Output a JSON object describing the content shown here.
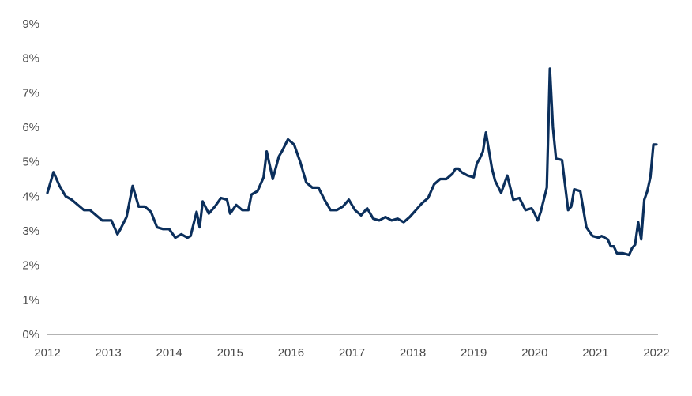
{
  "chart_data": {
    "type": "line",
    "title": "",
    "xlabel": "",
    "ylabel": "",
    "x_ticks": [
      "2012",
      "2013",
      "2014",
      "2015",
      "2016",
      "2017",
      "2018",
      "2019",
      "2020",
      "2021",
      "2022"
    ],
    "y_ticks": [
      "0%",
      "1%",
      "2%",
      "3%",
      "4%",
      "5%",
      "6%",
      "7%",
      "8%",
      "9%"
    ],
    "xlim": [
      2012,
      2022.1
    ],
    "ylim": [
      0,
      9
    ],
    "grid": false,
    "colors": {
      "line": "#0b2f5c",
      "axis": "#9a9a9a",
      "text": "#4a4a4a"
    },
    "series": [
      {
        "x": [
          2012.0,
          2012.1,
          2012.2,
          2012.3,
          2012.4,
          2012.5,
          2012.6,
          2012.7,
          2012.8,
          2012.9,
          2013.0,
          2013.05,
          2013.15,
          2013.2,
          2013.3,
          2013.4,
          2013.5,
          2013.6,
          2013.7,
          2013.8,
          2013.9,
          2014.0,
          2014.1,
          2014.2,
          2014.25,
          2014.3,
          2014.35,
          2014.45,
          2014.5,
          2014.55,
          2014.65,
          2014.75,
          2014.85,
          2014.95,
          2015.0,
          2015.1,
          2015.2,
          2015.3,
          2015.35,
          2015.45,
          2015.55,
          2015.6,
          2015.7,
          2015.8,
          2015.85,
          2015.95,
          2016.05,
          2016.15,
          2016.25,
          2016.35,
          2016.45,
          2016.55,
          2016.65,
          2016.75,
          2016.85,
          2016.95,
          2017.05,
          2017.15,
          2017.25,
          2017.35,
          2017.45,
          2017.55,
          2017.65,
          2017.75,
          2017.85,
          2017.95,
          2018.05,
          2018.15,
          2018.25,
          2018.35,
          2018.45,
          2018.55,
          2018.65,
          2018.7,
          2018.75,
          2018.8,
          2018.9,
          2019.0,
          2019.05,
          2019.1,
          2019.15,
          2019.2,
          2019.3,
          2019.35,
          2019.45,
          2019.55,
          2019.65,
          2019.75,
          2019.85,
          2019.95,
          2020.0,
          2020.05,
          2020.1,
          2020.2,
          2020.25,
          2020.3,
          2020.35,
          2020.45,
          2020.55,
          2020.6,
          2020.65,
          2020.75,
          2020.85,
          2020.95,
          2021.05,
          2021.1,
          2021.2,
          2021.25,
          2021.3,
          2021.35,
          2021.45,
          2021.55,
          2021.6,
          2021.65,
          2021.7,
          2021.75,
          2021.8,
          2021.85,
          2021.9,
          2021.95,
          2022.0
        ],
        "y": [
          4.1,
          4.7,
          4.3,
          4.0,
          3.9,
          3.75,
          3.6,
          3.6,
          3.45,
          3.3,
          3.3,
          3.3,
          2.9,
          3.05,
          3.4,
          4.3,
          3.7,
          3.7,
          3.55,
          3.1,
          3.05,
          3.05,
          2.8,
          2.9,
          2.85,
          2.8,
          2.85,
          3.55,
          3.1,
          3.85,
          3.5,
          3.7,
          3.95,
          3.9,
          3.5,
          3.75,
          3.6,
          3.6,
          4.05,
          4.15,
          4.55,
          5.3,
          4.5,
          5.15,
          5.3,
          5.65,
          5.5,
          5.0,
          4.4,
          4.25,
          4.25,
          3.9,
          3.6,
          3.6,
          3.7,
          3.9,
          3.6,
          3.45,
          3.65,
          3.35,
          3.3,
          3.4,
          3.3,
          3.35,
          3.25,
          3.4,
          3.6,
          3.8,
          3.95,
          4.35,
          4.5,
          4.5,
          4.65,
          4.8,
          4.8,
          4.7,
          4.6,
          4.55,
          4.95,
          5.1,
          5.3,
          5.85,
          4.8,
          4.45,
          4.1,
          4.6,
          3.9,
          3.95,
          3.6,
          3.65,
          3.5,
          3.3,
          3.55,
          4.25,
          7.7,
          6.0,
          5.1,
          5.05,
          3.6,
          3.7,
          4.2,
          4.15,
          3.1,
          2.85,
          2.8,
          2.85,
          2.75,
          2.55,
          2.55,
          2.35,
          2.35,
          2.3,
          2.5,
          2.6,
          3.25,
          2.75,
          3.9,
          4.15,
          4.55,
          5.5,
          5.5
        ]
      }
    ]
  }
}
